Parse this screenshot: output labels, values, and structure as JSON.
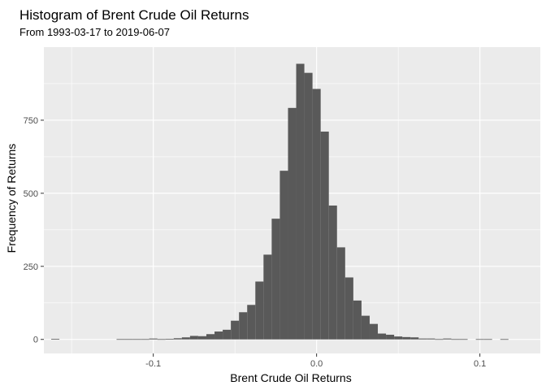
{
  "chart_data": {
    "type": "bar",
    "title": "Histogram of Brent Crude Oil Returns",
    "subtitle": "From 1993-03-17 to 2019-06-07",
    "xlabel": "Brent Crude Oil Returns",
    "ylabel": "Frequency of Returns",
    "xlim": [
      -0.167,
      0.137
    ],
    "ylim": [
      -48,
      1000
    ],
    "x_ticks": [
      -0.1,
      0.0,
      0.1
    ],
    "x_tick_labels": [
      "-0.1",
      "0.0",
      "0.1"
    ],
    "y_ticks": [
      0,
      250,
      500,
      750
    ],
    "y_tick_labels": [
      "0",
      "250",
      "500",
      "750"
    ],
    "bin_width": 0.005,
    "bins": [
      {
        "x": -0.16,
        "count": 2
      },
      {
        "x": -0.12,
        "count": 1
      },
      {
        "x": -0.115,
        "count": 1
      },
      {
        "x": -0.11,
        "count": 1
      },
      {
        "x": -0.105,
        "count": 1
      },
      {
        "x": -0.1,
        "count": 3
      },
      {
        "x": -0.095,
        "count": 1
      },
      {
        "x": -0.09,
        "count": 2
      },
      {
        "x": -0.085,
        "count": 4
      },
      {
        "x": -0.08,
        "count": 7
      },
      {
        "x": -0.075,
        "count": 12
      },
      {
        "x": -0.07,
        "count": 11
      },
      {
        "x": -0.065,
        "count": 18
      },
      {
        "x": -0.06,
        "count": 27
      },
      {
        "x": -0.055,
        "count": 33
      },
      {
        "x": -0.05,
        "count": 64
      },
      {
        "x": -0.045,
        "count": 93
      },
      {
        "x": -0.04,
        "count": 118
      },
      {
        "x": -0.035,
        "count": 198
      },
      {
        "x": -0.03,
        "count": 290
      },
      {
        "x": -0.025,
        "count": 413
      },
      {
        "x": -0.02,
        "count": 577
      },
      {
        "x": -0.015,
        "count": 792
      },
      {
        "x": -0.01,
        "count": 943
      },
      {
        "x": -0.005,
        "count": 912
      },
      {
        "x": 0.0,
        "count": 857
      },
      {
        "x": 0.005,
        "count": 711
      },
      {
        "x": 0.01,
        "count": 458
      },
      {
        "x": 0.015,
        "count": 315
      },
      {
        "x": 0.02,
        "count": 212
      },
      {
        "x": 0.025,
        "count": 133
      },
      {
        "x": 0.03,
        "count": 81
      },
      {
        "x": 0.035,
        "count": 53
      },
      {
        "x": 0.04,
        "count": 20
      },
      {
        "x": 0.045,
        "count": 16
      },
      {
        "x": 0.05,
        "count": 10
      },
      {
        "x": 0.055,
        "count": 8
      },
      {
        "x": 0.06,
        "count": 7
      },
      {
        "x": 0.065,
        "count": 3
      },
      {
        "x": 0.07,
        "count": 3
      },
      {
        "x": 0.075,
        "count": 1
      },
      {
        "x": 0.08,
        "count": 3
      },
      {
        "x": 0.085,
        "count": 1
      },
      {
        "x": 0.09,
        "count": 1
      },
      {
        "x": 0.1,
        "count": 1
      },
      {
        "x": 0.105,
        "count": 1
      },
      {
        "x": 0.115,
        "count": 1
      }
    ],
    "grid": true,
    "legend": "none",
    "colors": {
      "panel": "#ebebeb",
      "grid": "#ffffff",
      "bar": "#595959",
      "tick_label": "#4d4d4d"
    }
  }
}
